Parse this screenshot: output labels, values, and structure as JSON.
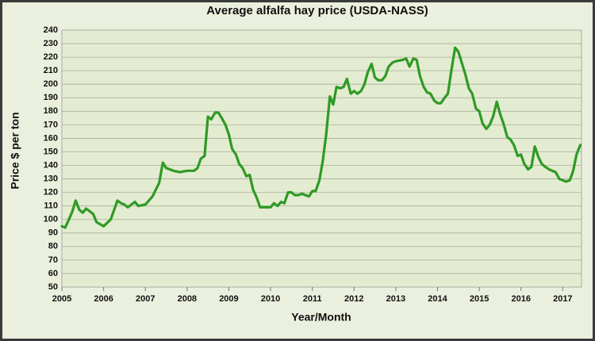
{
  "chart_data": {
    "type": "line",
    "title": "Average alfalfa hay price (USDA-NASS)",
    "x_label": "Year/Month",
    "y_label": "Price $ per ton",
    "color": "#2f9a25",
    "grid": true,
    "xlim": [
      2005,
      2017.45
    ],
    "xticks": [
      2005,
      2006,
      2007,
      2008,
      2009,
      2010,
      2011,
      2012,
      2013,
      2014,
      2015,
      2016,
      2017
    ],
    "ylim": [
      50,
      240
    ],
    "yticks": [
      50,
      60,
      70,
      80,
      90,
      100,
      110,
      120,
      130,
      140,
      150,
      160,
      170,
      180,
      190,
      200,
      210,
      220,
      230,
      240
    ],
    "x": [
      2005.0,
      2005.08,
      2005.17,
      2005.25,
      2005.33,
      2005.42,
      2005.5,
      2005.58,
      2005.67,
      2005.75,
      2005.83,
      2006.0,
      2006.17,
      2006.25,
      2006.33,
      2006.42,
      2006.5,
      2006.58,
      2006.75,
      2006.83,
      2007.0,
      2007.17,
      2007.33,
      2007.42,
      2007.5,
      2007.67,
      2007.83,
      2008.0,
      2008.17,
      2008.25,
      2008.33,
      2008.42,
      2008.5,
      2008.58,
      2008.67,
      2008.75,
      2008.83,
      2008.92,
      2009.0,
      2009.08,
      2009.17,
      2009.25,
      2009.33,
      2009.42,
      2009.5,
      2009.58,
      2009.67,
      2009.75,
      2010.0,
      2010.08,
      2010.17,
      2010.25,
      2010.33,
      2010.42,
      2010.5,
      2010.58,
      2010.67,
      2010.75,
      2010.92,
      2011.0,
      2011.08,
      2011.17,
      2011.25,
      2011.33,
      2011.42,
      2011.5,
      2011.58,
      2011.67,
      2011.75,
      2011.83,
      2011.92,
      2012.0,
      2012.08,
      2012.17,
      2012.25,
      2012.33,
      2012.42,
      2012.5,
      2012.58,
      2012.67,
      2012.75,
      2012.83,
      2012.92,
      2013.0,
      2013.17,
      2013.25,
      2013.33,
      2013.42,
      2013.5,
      2013.58,
      2013.67,
      2013.75,
      2013.83,
      2013.92,
      2014.0,
      2014.08,
      2014.17,
      2014.25,
      2014.33,
      2014.42,
      2014.5,
      2014.58,
      2014.67,
      2014.75,
      2014.83,
      2014.92,
      2015.0,
      2015.08,
      2015.17,
      2015.25,
      2015.33,
      2015.42,
      2015.5,
      2015.58,
      2015.67,
      2015.75,
      2015.83,
      2015.92,
      2016.0,
      2016.08,
      2016.17,
      2016.25,
      2016.33,
      2016.42,
      2016.5,
      2016.58,
      2016.67,
      2016.83,
      2016.92,
      2017.0,
      2017.08,
      2017.17,
      2017.25,
      2017.33,
      2017.42
    ],
    "values": [
      95,
      94,
      100,
      106,
      114,
      107,
      105,
      108,
      106,
      104,
      98,
      95,
      100,
      107,
      114,
      112,
      111,
      109,
      113,
      110,
      111,
      117,
      127,
      142,
      138,
      136,
      135,
      136,
      136,
      138,
      145,
      147,
      176,
      174,
      179,
      179,
      175,
      170,
      163,
      152,
      148,
      141,
      138,
      132,
      133,
      122,
      116,
      109,
      109,
      112,
      110,
      113,
      112,
      120,
      120,
      118,
      118,
      119,
      117,
      121,
      121,
      129,
      143,
      162,
      191,
      185,
      198,
      197,
      198,
      204,
      193,
      195,
      193,
      195,
      200,
      209,
      215,
      205,
      203,
      203,
      206,
      213,
      216,
      217,
      218,
      219,
      213,
      219,
      218,
      206,
      198,
      194,
      193,
      188,
      186,
      186,
      190,
      193,
      210,
      227,
      224,
      216,
      207,
      197,
      193,
      182,
      180,
      171,
      167,
      170,
      176,
      187,
      178,
      171,
      161,
      159,
      155,
      147,
      148,
      141,
      137,
      139,
      154,
      146,
      141,
      139,
      137,
      135,
      130,
      129,
      128,
      129,
      136,
      148,
      155
    ]
  }
}
